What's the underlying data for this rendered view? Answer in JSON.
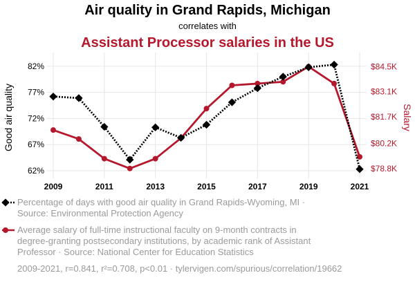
{
  "title": {
    "line1": "Air quality in Grand Rapids, Michigan",
    "line2": "correlates with",
    "line3": "Assistant Processor salaries in the US"
  },
  "colors": {
    "series1": "#000000",
    "series2": "#b5172c",
    "grid": "#e6e6e6",
    "muted": "#9a9a9a"
  },
  "chart_data": {
    "type": "line",
    "x": [
      2009,
      2010,
      2011,
      2012,
      2013,
      2014,
      2015,
      2016,
      2017,
      2018,
      2019,
      2020,
      2021
    ],
    "xticks": [
      "2009",
      "2011",
      "2013",
      "2015",
      "2017",
      "2019",
      "2021"
    ],
    "left_axis": {
      "label": "Good air quality",
      "ylim": [
        61.6,
        83.3
      ],
      "ticks": [
        "62%",
        "67%",
        "72%",
        "77%",
        "82%"
      ],
      "tick_values": [
        62,
        67,
        72,
        77,
        82
      ]
    },
    "right_axis": {
      "label": "Salary",
      "ylim": [
        78560,
        84900
      ],
      "ticks": [
        "$78.8K",
        "$80.2K",
        "$81.7K",
        "$83.1K",
        "$84.5K"
      ],
      "tick_values": [
        78800,
        80200,
        81700,
        83100,
        84500
      ]
    },
    "series": [
      {
        "name": "Percentage of days with good air quality in Grand Rapids-Wyoming, MI · Source: Environmental Protection Agency",
        "axis": "left",
        "style": "dotted",
        "marker": "diamond",
        "values": [
          76.2,
          75.9,
          70.4,
          64.1,
          70.3,
          68.3,
          70.8,
          75.1,
          77.8,
          80.0,
          81.8,
          82.3,
          62.3
        ]
      },
      {
        "name": "Average salary of full-time instructional faculty on 9-month contracts in degree-granting postsecondary institutions, by academic rank of Assistant Professor · Source: National Center for Education Statistics",
        "axis": "right",
        "style": "solid",
        "marker": "circle",
        "values": [
          80950,
          80450,
          79350,
          78800,
          79350,
          80500,
          82150,
          83450,
          83550,
          83650,
          84500,
          83550,
          79450
        ]
      }
    ],
    "grid": true
  },
  "legend": [
    {
      "lines": [
        "Percentage of days with good air quality in Grand Rapids-Wyoming, MI ·",
        "Source: Environmental Protection Agency"
      ]
    },
    {
      "lines": [
        "Average salary of full-time instructional faculty on 9-month contracts in",
        "degree-granting postsecondary institutions, by academic rank of Assistant",
        "Professor · Source: National Center for Education Statistics"
      ]
    }
  ],
  "footer": "2009-2021, r=0.841, r²=0.708, p<0.01 · tylervigen.com/spurious/correlation/19662"
}
